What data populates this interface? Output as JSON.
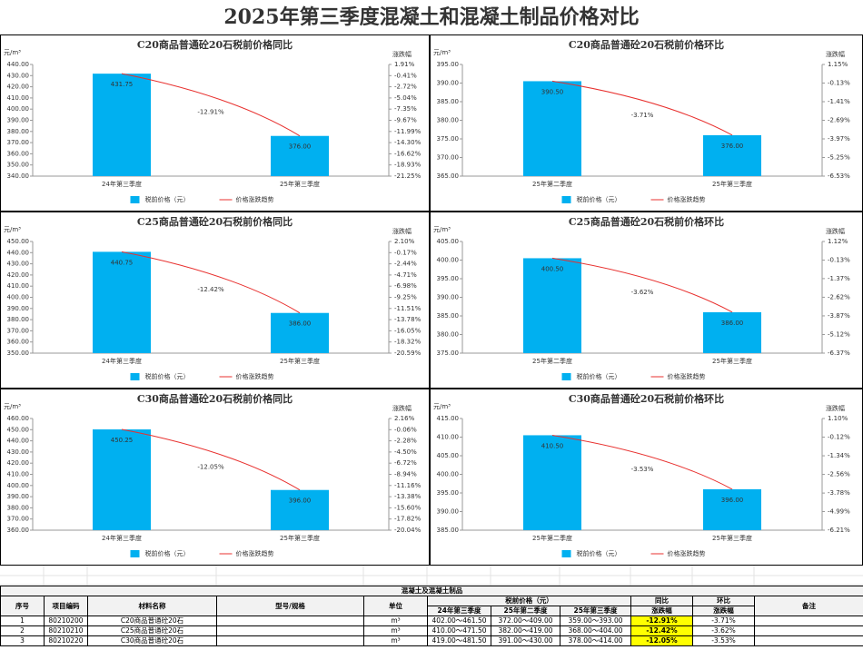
{
  "title": "2025年第三季度混凝土和混凝土制品价格对比",
  "chart_data": [
    {
      "type": "bar",
      "title": "C20商品普通砼20石税前价格同比",
      "y_label": "元/m³",
      "y2_label": "涨跌幅",
      "categories": [
        "24年第三季度",
        "25年第三季度"
      ],
      "series": [
        {
          "name": "税前价格（元）",
          "color": "#00b0f0",
          "values": [
            431.75,
            376.0
          ],
          "value_labels": [
            "431.75",
            "376.00"
          ]
        },
        {
          "name": "价格涨跌趋势",
          "type": "line",
          "axis": "y2",
          "color": "#e8312f",
          "values": [
            0,
            -12.91
          ],
          "value_labels": [
            null,
            "-12.91%"
          ]
        }
      ],
      "ylim": [
        340,
        440
      ],
      "yticks": [
        {
          "value": 440,
          "label": "440.00"
        },
        {
          "value": 430,
          "label": "430.00"
        },
        {
          "value": 420,
          "label": "420.00"
        },
        {
          "value": 410,
          "label": "410.00"
        },
        {
          "value": 400,
          "label": "400.00"
        },
        {
          "value": 390,
          "label": "390.00"
        },
        {
          "value": 380,
          "label": "380.00"
        },
        {
          "value": 370,
          "label": "370.00"
        },
        {
          "value": 360,
          "label": "360.00"
        },
        {
          "value": 350,
          "label": "350.00"
        },
        {
          "value": 340,
          "label": "340.00"
        }
      ],
      "y2lim": [
        -21.25,
        1.91
      ],
      "y2ticks": [
        {
          "value": 1.91,
          "label": "1.91%"
        },
        {
          "value": -0.41,
          "label": "-0.41%"
        },
        {
          "value": -2.72,
          "label": "-2.72%"
        },
        {
          "value": -5.04,
          "label": "-5.04%"
        },
        {
          "value": -7.35,
          "label": "-7.35%"
        },
        {
          "value": -9.67,
          "label": "-9.67%"
        },
        {
          "value": -11.99,
          "label": "-11.99%"
        },
        {
          "value": -14.3,
          "label": "-14.30%"
        },
        {
          "value": -16.62,
          "label": "-16.62%"
        },
        {
          "value": -18.93,
          "label": "-18.93%"
        },
        {
          "value": -21.25,
          "label": "-21.25%"
        }
      ]
    },
    {
      "type": "bar",
      "title": "C20商品普通砼20石税前价格环比",
      "y_label": "元/m³",
      "y2_label": "涨跌幅",
      "categories": [
        "25年第二季度",
        "25年第三季度"
      ],
      "series": [
        {
          "name": "税前价格（元）",
          "color": "#00b0f0",
          "values": [
            390.5,
            376.0
          ],
          "value_labels": [
            "390.50",
            "376.00"
          ]
        },
        {
          "name": "价格涨跌趋势",
          "type": "line",
          "axis": "y2",
          "color": "#e8312f",
          "values": [
            0,
            -3.71
          ],
          "value_labels": [
            null,
            "-3.71%"
          ]
        }
      ],
      "ylim": [
        365,
        395
      ],
      "yticks": [
        {
          "value": 395,
          "label": "395.00"
        },
        {
          "value": 390,
          "label": "390.00"
        },
        {
          "value": 385,
          "label": "385.00"
        },
        {
          "value": 380,
          "label": "380.00"
        },
        {
          "value": 375,
          "label": "375.00"
        },
        {
          "value": 370,
          "label": "370.00"
        },
        {
          "value": 365,
          "label": "365.00"
        }
      ],
      "y2lim": [
        -6.53,
        1.15
      ],
      "y2ticks": [
        {
          "value": 1.15,
          "label": "1.15%"
        },
        {
          "value": -0.13,
          "label": "-0.13%"
        },
        {
          "value": -1.41,
          "label": "-1.41%"
        },
        {
          "value": -2.69,
          "label": "-2.69%"
        },
        {
          "value": -3.97,
          "label": "-3.97%"
        },
        {
          "value": -5.25,
          "label": "-5.25%"
        },
        {
          "value": -6.53,
          "label": "-6.53%"
        }
      ]
    },
    {
      "type": "bar",
      "title": "C25商品普通砼20石税前价格同比",
      "y_label": "元/m³",
      "y2_label": "涨跌幅",
      "categories": [
        "24年第三季度",
        "25年第三季度"
      ],
      "series": [
        {
          "name": "税前价格（元）",
          "color": "#00b0f0",
          "values": [
            440.75,
            386.0
          ],
          "value_labels": [
            "440.75",
            "386.00"
          ]
        },
        {
          "name": "价格涨跌趋势",
          "type": "line",
          "axis": "y2",
          "color": "#e8312f",
          "values": [
            0,
            -12.42
          ],
          "value_labels": [
            null,
            "-12.42%"
          ]
        }
      ],
      "ylim": [
        350,
        450
      ],
      "yticks": [
        {
          "value": 450,
          "label": "450.00"
        },
        {
          "value": 440,
          "label": "440.00"
        },
        {
          "value": 430,
          "label": "430.00"
        },
        {
          "value": 420,
          "label": "420.00"
        },
        {
          "value": 410,
          "label": "410.00"
        },
        {
          "value": 400,
          "label": "400.00"
        },
        {
          "value": 390,
          "label": "390.00"
        },
        {
          "value": 380,
          "label": "380.00"
        },
        {
          "value": 370,
          "label": "370.00"
        },
        {
          "value": 360,
          "label": "360.00"
        },
        {
          "value": 350,
          "label": "350.00"
        }
      ],
      "y2lim": [
        -20.59,
        2.1
      ],
      "y2ticks": [
        {
          "value": 2.1,
          "label": "2.10%"
        },
        {
          "value": -0.17,
          "label": "-0.17%"
        },
        {
          "value": -2.44,
          "label": "-2.44%"
        },
        {
          "value": -4.71,
          "label": "-4.71%"
        },
        {
          "value": -6.98,
          "label": "-6.98%"
        },
        {
          "value": -9.25,
          "label": "-9.25%"
        },
        {
          "value": -11.51,
          "label": "-11.51%"
        },
        {
          "value": -13.78,
          "label": "-13.78%"
        },
        {
          "value": -16.05,
          "label": "-16.05%"
        },
        {
          "value": -18.32,
          "label": "-18.32%"
        },
        {
          "value": -20.59,
          "label": "-20.59%"
        }
      ]
    },
    {
      "type": "bar",
      "title": "C25商品普通砼20石税前价格环比",
      "y_label": "元/m³",
      "y2_label": "涨跌幅",
      "categories": [
        "25年第二季度",
        "25年第三季度"
      ],
      "series": [
        {
          "name": "税前价格（元）",
          "color": "#00b0f0",
          "values": [
            400.5,
            386.0
          ],
          "value_labels": [
            "400.50",
            "386.00"
          ]
        },
        {
          "name": "价格涨跌趋势",
          "type": "line",
          "axis": "y2",
          "color": "#e8312f",
          "values": [
            0,
            -3.62
          ],
          "value_labels": [
            null,
            "-3.62%"
          ]
        }
      ],
      "ylim": [
        375,
        405
      ],
      "yticks": [
        {
          "value": 405,
          "label": "405.00"
        },
        {
          "value": 400,
          "label": "400.00"
        },
        {
          "value": 395,
          "label": "395.00"
        },
        {
          "value": 390,
          "label": "390.00"
        },
        {
          "value": 385,
          "label": "385.00"
        },
        {
          "value": 380,
          "label": "380.00"
        },
        {
          "value": 375,
          "label": "375.00"
        }
      ],
      "y2lim": [
        -6.37,
        1.12
      ],
      "y2ticks": [
        {
          "value": 1.12,
          "label": "1.12%"
        },
        {
          "value": -0.13,
          "label": "-0.13%"
        },
        {
          "value": -1.37,
          "label": "-1.37%"
        },
        {
          "value": -2.62,
          "label": "-2.62%"
        },
        {
          "value": -3.87,
          "label": "-3.87%"
        },
        {
          "value": -5.12,
          "label": "-5.12%"
        },
        {
          "value": -6.37,
          "label": "-6.37%"
        }
      ]
    },
    {
      "type": "bar",
      "title": "C30商品普通砼20石税前价格同比",
      "y_label": "元/m³",
      "y2_label": "涨跌幅",
      "categories": [
        "24年第三季度",
        "25年第三季度"
      ],
      "series": [
        {
          "name": "税前价格（元）",
          "color": "#00b0f0",
          "values": [
            450.25,
            396.0
          ],
          "value_labels": [
            "450.25",
            "396.00"
          ]
        },
        {
          "name": "价格涨跌趋势",
          "type": "line",
          "axis": "y2",
          "color": "#e8312f",
          "values": [
            0,
            -12.05
          ],
          "value_labels": [
            null,
            "-12.05%"
          ]
        }
      ],
      "ylim": [
        360,
        460
      ],
      "yticks": [
        {
          "value": 460,
          "label": "460.00"
        },
        {
          "value": 450,
          "label": "450.00"
        },
        {
          "value": 440,
          "label": "440.00"
        },
        {
          "value": 430,
          "label": "430.00"
        },
        {
          "value": 420,
          "label": "420.00"
        },
        {
          "value": 410,
          "label": "410.00"
        },
        {
          "value": 400,
          "label": "400.00"
        },
        {
          "value": 390,
          "label": "390.00"
        },
        {
          "value": 380,
          "label": "380.00"
        },
        {
          "value": 370,
          "label": "370.00"
        },
        {
          "value": 360,
          "label": "360.00"
        }
      ],
      "y2lim": [
        -20.04,
        2.16
      ],
      "y2ticks": [
        {
          "value": 2.16,
          "label": "2.16%"
        },
        {
          "value": -0.06,
          "label": "-0.06%"
        },
        {
          "value": -2.28,
          "label": "-2.28%"
        },
        {
          "value": -4.5,
          "label": "-4.50%"
        },
        {
          "value": -6.72,
          "label": "-6.72%"
        },
        {
          "value": -8.94,
          "label": "-8.94%"
        },
        {
          "value": -11.16,
          "label": "-11.16%"
        },
        {
          "value": -13.38,
          "label": "-13.38%"
        },
        {
          "value": -15.6,
          "label": "-15.60%"
        },
        {
          "value": -17.82,
          "label": "-17.82%"
        },
        {
          "value": -20.04,
          "label": "-20.04%"
        }
      ]
    },
    {
      "type": "bar",
      "title": "C30商品普通砼20石税前价格环比",
      "y_label": "元/m³",
      "y2_label": "涨跌幅",
      "categories": [
        "25年第二季度",
        "25年第三季度"
      ],
      "series": [
        {
          "name": "税前价格（元）",
          "color": "#00b0f0",
          "values": [
            410.5,
            396.0
          ],
          "value_labels": [
            "410.50",
            "396.00"
          ]
        },
        {
          "name": "价格涨跌趋势",
          "type": "line",
          "axis": "y2",
          "color": "#e8312f",
          "values": [
            0,
            -3.53
          ],
          "value_labels": [
            null,
            "-3.53%"
          ]
        }
      ],
      "ylim": [
        385,
        415
      ],
      "yticks": [
        {
          "value": 415,
          "label": "415.00"
        },
        {
          "value": 410,
          "label": "410.00"
        },
        {
          "value": 405,
          "label": "405.00"
        },
        {
          "value": 400,
          "label": "400.00"
        },
        {
          "value": 395,
          "label": "395.00"
        },
        {
          "value": 390,
          "label": "390.00"
        },
        {
          "value": 385,
          "label": "385.00"
        }
      ],
      "y2lim": [
        -6.21,
        1.1
      ],
      "y2ticks": [
        {
          "value": 1.1,
          "label": "1.10%"
        },
        {
          "value": -0.12,
          "label": "-0.12%"
        },
        {
          "value": -1.34,
          "label": "-1.34%"
        },
        {
          "value": -2.56,
          "label": "-2.56%"
        },
        {
          "value": -3.78,
          "label": "-3.78%"
        },
        {
          "value": -4.99,
          "label": "-4.99%"
        },
        {
          "value": -6.21,
          "label": "-6.21%"
        }
      ]
    }
  ],
  "table": {
    "title": "混凝土及混凝土制品",
    "headers": {
      "no": "序号",
      "code": "项目编码",
      "name": "材料名称",
      "spec": "型号/规格",
      "unit": "单位",
      "price": "税前价格（元）",
      "periods": [
        "24年第三季度",
        "25年第二季度",
        "25年第三季度"
      ],
      "yoy": [
        "同比",
        "涨跌幅"
      ],
      "qoq": [
        "环比",
        "涨跌幅"
      ],
      "remark": "备注"
    },
    "rows": [
      {
        "no": 1,
        "code": "80210200",
        "name": "C20商品普通砼20石",
        "unit": "m³",
        "prices": [
          "402.00～461.50",
          "372.00～409.00",
          "359.00～393.00"
        ],
        "yoy": "-12.91%",
        "qoq": "-3.71%"
      },
      {
        "no": 2,
        "code": "80210210",
        "name": "C25商品普通砼20石",
        "unit": "m³",
        "prices": [
          "410.00～471.50",
          "382.00～419.00",
          "368.00～404.00"
        ],
        "yoy": "-12.42%",
        "qoq": "-3.62%"
      },
      {
        "no": 3,
        "code": "80210220",
        "name": "C30商品普通砼20石",
        "unit": "m³",
        "prices": [
          "419.00～481.50",
          "391.00～430.00",
          "378.00～414.00"
        ],
        "yoy": "-12.05%",
        "qoq": "-3.53%"
      }
    ]
  }
}
